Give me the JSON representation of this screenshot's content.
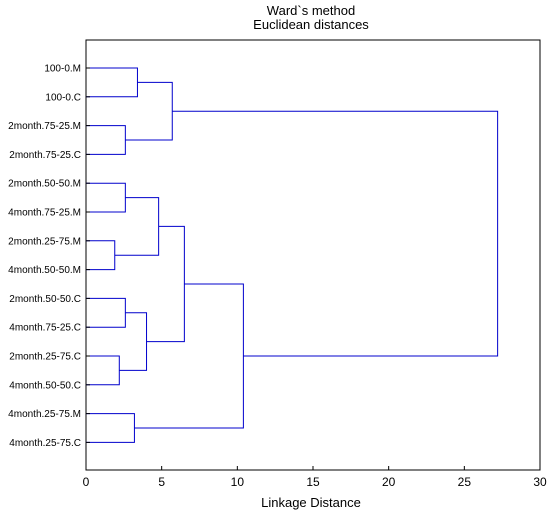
{
  "chart_data": {
    "type": "dendrogram",
    "title": "Ward`s method",
    "subtitle": "Euclidean distances",
    "xlabel": "Linkage Distance",
    "xlim": [
      0,
      30
    ],
    "xticks": [
      "0",
      "5",
      "10",
      "15",
      "20",
      "25",
      "30"
    ],
    "line_color": "#0000cc",
    "leaves": [
      "100-0.M",
      "100-0.C",
      "2month.75-25.M",
      "2month.75-25.C",
      "2month.50-50.M",
      "4month.75-25.M",
      "2month.25-75.M",
      "4month.50-50.M",
      "2month.50-50.C",
      "4month.75-25.C",
      "2month.25-75.C",
      "4month.50-50.C",
      "4month.25-75.M",
      "4month.25-75.C"
    ],
    "merges": [
      {
        "id": "c1",
        "a": "L0",
        "b": "L1",
        "height": 3.4
      },
      {
        "id": "c2",
        "a": "L2",
        "b": "L3",
        "height": 2.6
      },
      {
        "id": "c3",
        "a": "c1",
        "b": "c2",
        "height": 5.7
      },
      {
        "id": "c4",
        "a": "L4",
        "b": "L5",
        "height": 2.6
      },
      {
        "id": "c5",
        "a": "L6",
        "b": "L7",
        "height": 1.9
      },
      {
        "id": "c6",
        "a": "c4",
        "b": "c5",
        "height": 4.8
      },
      {
        "id": "c7",
        "a": "L8",
        "b": "L9",
        "height": 2.6
      },
      {
        "id": "c8",
        "a": "L10",
        "b": "L11",
        "height": 2.2
      },
      {
        "id": "c9",
        "a": "c7",
        "b": "c8",
        "height": 4.0
      },
      {
        "id": "c10",
        "a": "c6",
        "b": "c9",
        "height": 6.5
      },
      {
        "id": "c11",
        "a": "L12",
        "b": "L13",
        "height": 3.2
      },
      {
        "id": "c12",
        "a": "c10",
        "b": "c11",
        "height": 10.4
      },
      {
        "id": "c13",
        "a": "c3",
        "b": "c12",
        "height": 27.2
      }
    ]
  }
}
